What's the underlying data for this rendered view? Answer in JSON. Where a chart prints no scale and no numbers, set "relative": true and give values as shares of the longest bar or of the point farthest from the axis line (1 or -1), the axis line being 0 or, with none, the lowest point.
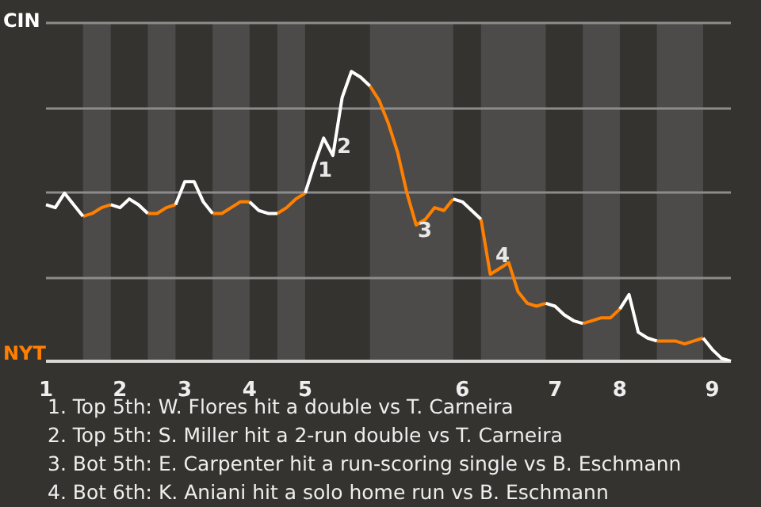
{
  "chart_data": {
    "type": "line",
    "relative": true,
    "grid": "y",
    "marker": "none",
    "categories": [
      "1",
      null,
      null,
      null,
      null,
      null,
      null,
      null,
      "2",
      null,
      null,
      null,
      null,
      null,
      null,
      "3",
      null,
      null,
      null,
      null,
      null,
      null,
      "4",
      null,
      null,
      null,
      null,
      null,
      "5",
      null,
      null,
      null,
      null,
      null,
      null,
      null,
      null,
      null,
      null,
      null,
      null,
      null,
      null,
      null,
      null,
      "6",
      null,
      null,
      null,
      null,
      null,
      null,
      null,
      null,
      null,
      "7",
      null,
      null,
      null,
      null,
      null,
      null,
      "8",
      null,
      null,
      null,
      null,
      null,
      null,
      null,
      null,
      null,
      "9",
      null,
      null
    ],
    "series": [
      {
        "name": "CIN",
        "color": "#ffffff",
        "values": [
          0.54,
          0.53,
          0.58,
          0.54,
          0.5,
          null,
          null,
          0.54,
          0.53,
          0.56,
          0.54,
          0.51,
          null,
          null,
          0.54,
          0.62,
          0.62,
          0.55,
          0.51,
          null,
          null,
          null,
          0.55,
          0.52,
          0.51,
          0.51,
          null,
          null,
          0.58,
          0.68,
          0.77,
          0.71,
          0.91,
          1.0,
          0.98,
          0.95,
          null,
          null,
          null,
          null,
          null,
          null,
          null,
          null,
          0.56,
          0.55,
          0.52,
          0.49,
          null,
          null,
          null,
          null,
          null,
          null,
          0.2,
          0.19,
          0.16,
          0.14,
          0.13,
          null,
          null,
          null,
          0.18,
          0.23,
          0.1,
          0.08,
          0.07,
          null,
          null,
          null,
          null,
          0.08,
          0.04,
          0.01,
          0.0
        ]
      },
      {
        "name": "NYT",
        "color": "#ff8000",
        "values": [
          null,
          null,
          null,
          null,
          0.5,
          0.51,
          0.53,
          0.54,
          null,
          null,
          null,
          0.51,
          0.51,
          0.53,
          0.54,
          null,
          null,
          null,
          0.51,
          0.51,
          0.53,
          0.55,
          0.55,
          null,
          null,
          0.51,
          0.53,
          0.56,
          0.58,
          null,
          null,
          null,
          null,
          null,
          null,
          0.95,
          0.9,
          0.82,
          0.72,
          0.58,
          0.47,
          0.49,
          0.53,
          0.52,
          0.56,
          null,
          null,
          0.49,
          0.3,
          0.32,
          0.34,
          0.24,
          0.2,
          0.19,
          0.2,
          null,
          null,
          null,
          0.13,
          0.14,
          0.15,
          0.15,
          0.18,
          null,
          null,
          null,
          0.07,
          0.07,
          0.07,
          0.06,
          0.07,
          0.08,
          null,
          null,
          null
        ]
      }
    ],
    "annotations": [
      "1",
      "2",
      "3",
      "4",
      "1. Top 5th: W. Flores hit a double vs T. Carneira",
      "2. Top 5th: S. Miller hit a 2-run double vs T. Carneira",
      "3. Bot 5th: E. Carpenter hit a run-scoring single vs B. Eschmann",
      "4. Bot 6th: K. Aniani hit a solo home run vs B. Eschmann"
    ]
  }
}
